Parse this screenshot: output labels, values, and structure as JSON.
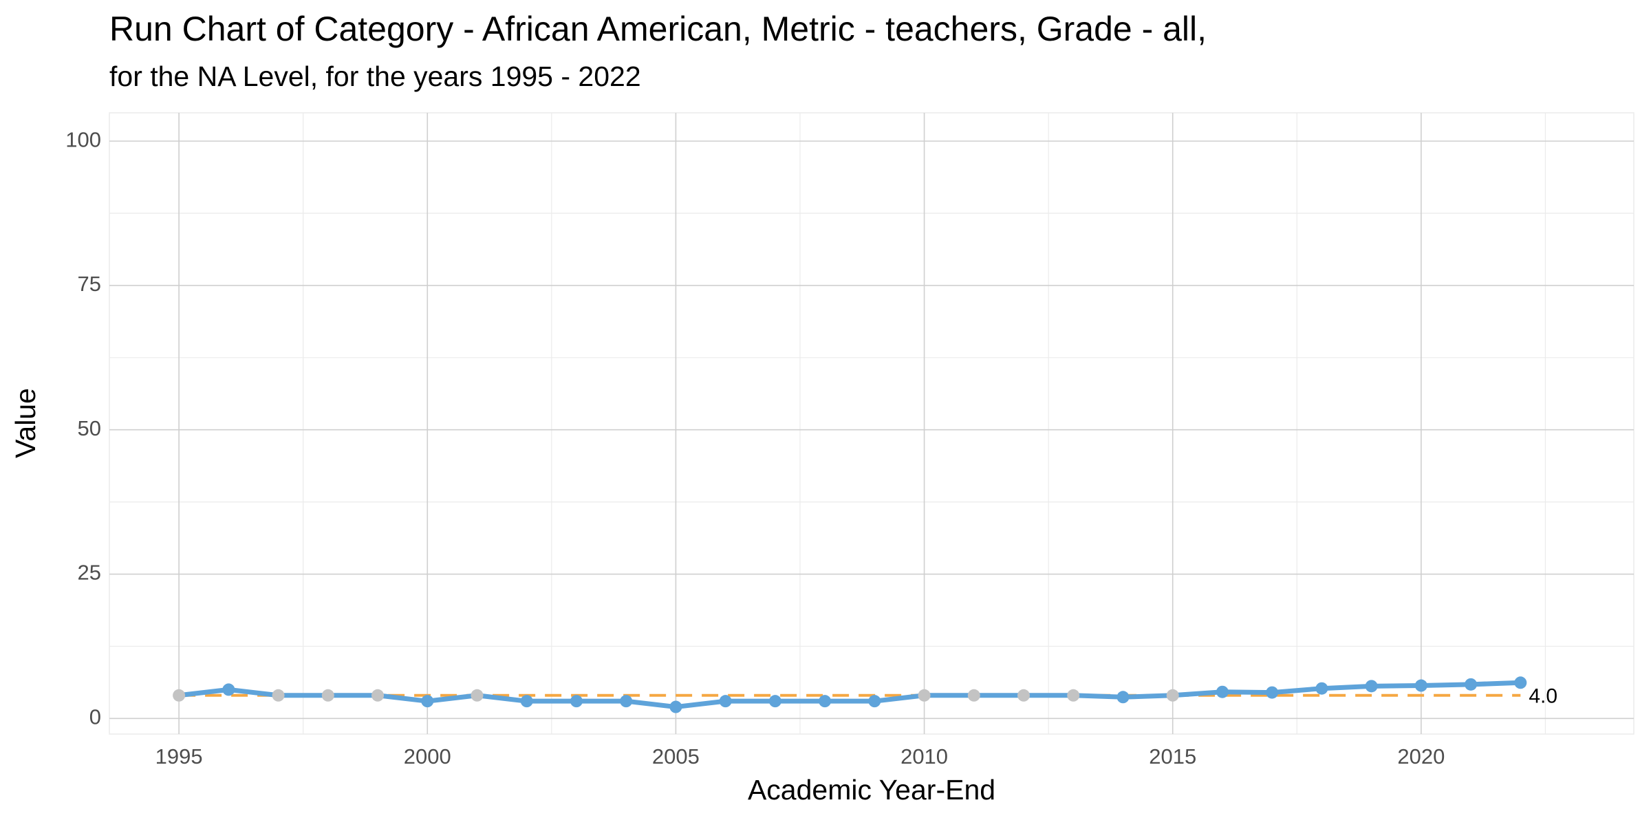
{
  "chart_data": {
    "type": "line",
    "title": "Run Chart of Category -  African American, Metric - teachers, Grade - all,",
    "subtitle": "for the NA Level, for the years 1995 - 2022",
    "x_label": "Academic Year-End",
    "y_label": "Value",
    "x": [
      1995,
      1996,
      1997,
      1998,
      1999,
      2000,
      2001,
      2002,
      2003,
      2004,
      2005,
      2006,
      2007,
      2008,
      2009,
      2010,
      2011,
      2012,
      2013,
      2014,
      2015,
      2016,
      2017,
      2018,
      2019,
      2020,
      2021,
      2022
    ],
    "series": [
      {
        "color": "#5ea3da",
        "values": [
          4,
          5,
          4,
          4,
          4,
          3,
          4,
          3,
          3,
          3,
          2,
          3,
          3,
          3,
          3,
          4,
          4,
          4,
          4,
          3.7,
          4,
          4.6,
          4.5,
          5.2,
          5.6,
          5.7,
          5.9,
          6.2
        ],
        "point_colors": [
          "#c3c3c3",
          "#5ea3da",
          "#c3c3c3",
          "#c3c3c3",
          "#c3c3c3",
          "#5ea3da",
          "#c3c3c3",
          "#5ea3da",
          "#5ea3da",
          "#5ea3da",
          "#5ea3da",
          "#5ea3da",
          "#5ea3da",
          "#5ea3da",
          "#5ea3da",
          "#c3c3c3",
          "#c3c3c3",
          "#c3c3c3",
          "#c3c3c3",
          "#5ea3da",
          "#c3c3c3",
          "#5ea3da",
          "#5ea3da",
          "#5ea3da",
          "#5ea3da",
          "#5ea3da",
          "#5ea3da",
          "#5ea3da"
        ]
      }
    ],
    "median": {
      "value": 4,
      "label": "4.0",
      "color": "#f5a742"
    },
    "xlim": [
      1993.6,
      2024.28
    ],
    "xticks": [
      1995,
      2000,
      2005,
      2010,
      2015,
      2020
    ],
    "ylim": [
      -2.7,
      104.9
    ],
    "yticks": [
      0,
      25,
      50,
      75,
      100
    ],
    "grid": true
  }
}
